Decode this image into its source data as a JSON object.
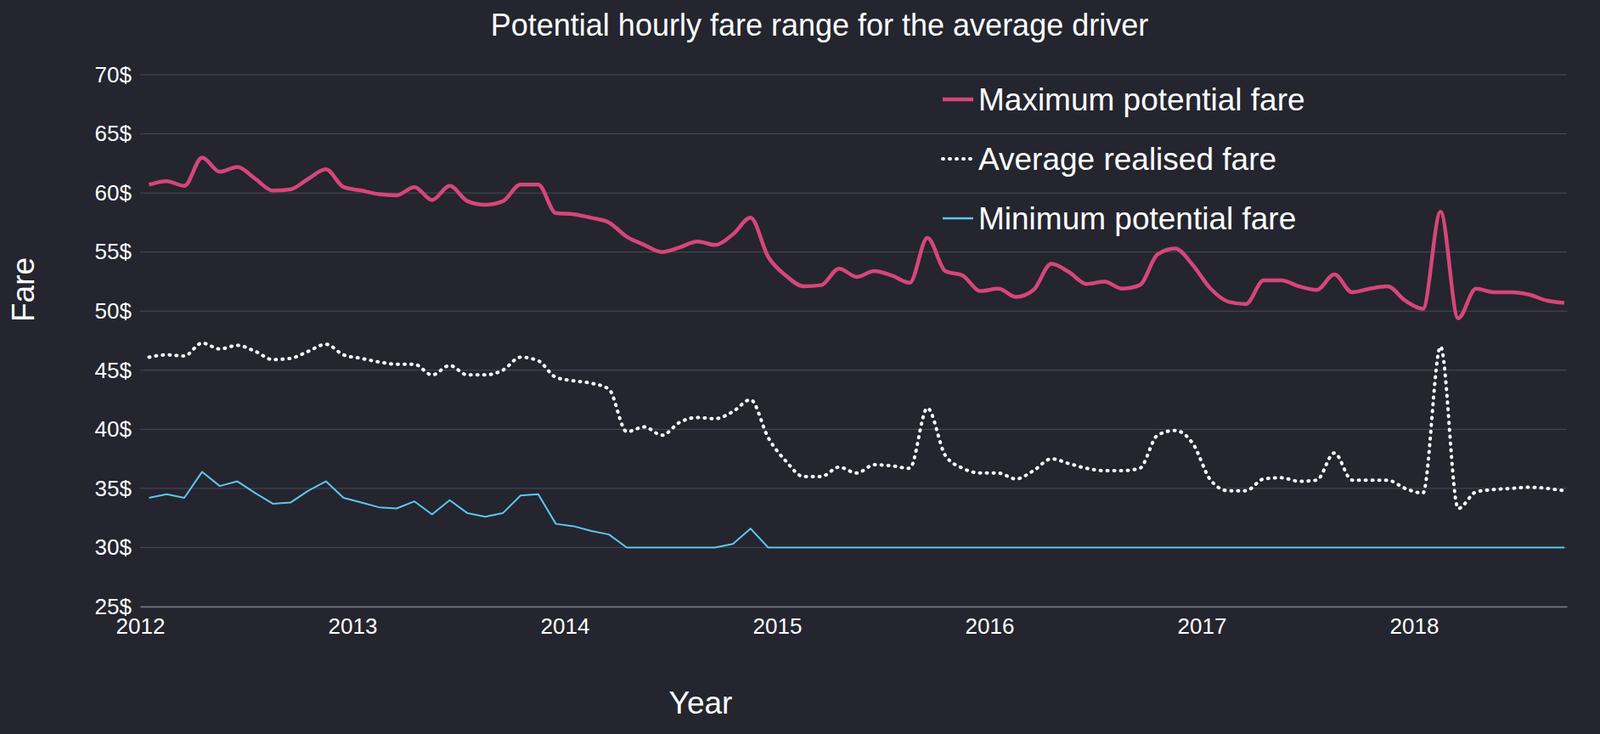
{
  "chart_data": {
    "type": "line",
    "title": "Potential hourly fare range for the average driver",
    "x_label": "Year",
    "y_label": "Fare",
    "x": [
      2012.042,
      2012.125,
      2012.208,
      2012.292,
      2012.375,
      2012.458,
      2012.542,
      2012.625,
      2012.708,
      2012.792,
      2012.875,
      2012.958,
      2013.042,
      2013.125,
      2013.208,
      2013.292,
      2013.375,
      2013.458,
      2013.542,
      2013.625,
      2013.708,
      2013.792,
      2013.875,
      2013.958,
      2014.042,
      2014.125,
      2014.208,
      2014.292,
      2014.375,
      2014.458,
      2014.542,
      2014.625,
      2014.708,
      2014.792,
      2014.875,
      2014.958,
      2015.042,
      2015.125,
      2015.208,
      2015.292,
      2015.375,
      2015.458,
      2015.542,
      2015.625,
      2015.708,
      2015.792,
      2015.875,
      2015.958,
      2016.042,
      2016.125,
      2016.208,
      2016.292,
      2016.375,
      2016.458,
      2016.542,
      2016.625,
      2016.708,
      2016.792,
      2016.875,
      2016.958,
      2017.042,
      2017.125,
      2017.208,
      2017.292,
      2017.375,
      2017.458,
      2017.542,
      2017.625,
      2017.708,
      2017.792,
      2017.875,
      2017.958,
      2018.042,
      2018.125,
      2018.208,
      2018.292,
      2018.375,
      2018.458,
      2018.542,
      2018.625,
      2018.708
    ],
    "series": [
      {
        "name": "Maximum potential fare",
        "color": "#d6467a",
        "line_style": "solid",
        "values": [
          60.7,
          61.0,
          60.6,
          63.0,
          61.8,
          62.2,
          61.2,
          60.2,
          60.3,
          61.2,
          62.0,
          60.5,
          60.2,
          59.9,
          59.8,
          60.5,
          59.4,
          60.6,
          59.3,
          59.0,
          59.3,
          60.7,
          60.7,
          58.3,
          58.2,
          57.9,
          57.5,
          56.3,
          55.6,
          55.0,
          55.4,
          55.9,
          55.6,
          56.5,
          57.9,
          54.6,
          53.0,
          52.1,
          52.2,
          53.6,
          52.9,
          53.4,
          53.0,
          52.4,
          56.2,
          53.4,
          53.0,
          51.7,
          51.9,
          51.2,
          51.8,
          54.0,
          53.3,
          52.3,
          52.5,
          51.9,
          52.2,
          54.8,
          55.3,
          53.9,
          51.9,
          50.8,
          50.6,
          52.6,
          52.6,
          52.1,
          51.8,
          53.1,
          51.6,
          51.9,
          52.1,
          50.9,
          50.2,
          58.4,
          49.4,
          51.9,
          51.6,
          51.6,
          51.4,
          50.9,
          50.7
        ]
      },
      {
        "name": "Average realised fare",
        "color": "#ffffff",
        "line_style": "dotted",
        "values": [
          46.1,
          46.3,
          46.2,
          47.3,
          46.8,
          47.1,
          46.6,
          45.9,
          46.0,
          46.6,
          47.2,
          46.3,
          46.0,
          45.7,
          45.5,
          45.5,
          44.6,
          45.4,
          44.6,
          44.6,
          45.0,
          46.1,
          45.8,
          44.4,
          44.1,
          43.9,
          43.4,
          39.8,
          40.2,
          39.5,
          40.6,
          41.0,
          40.9,
          41.5,
          42.5,
          39.3,
          37.3,
          36.0,
          36.0,
          36.8,
          36.3,
          37.0,
          36.9,
          36.7,
          41.8,
          37.8,
          36.7,
          36.3,
          36.3,
          35.8,
          36.5,
          37.5,
          37.1,
          36.7,
          36.5,
          36.5,
          36.7,
          39.5,
          39.9,
          38.8,
          35.7,
          34.8,
          34.8,
          35.8,
          35.9,
          35.6,
          35.7,
          38.0,
          35.7,
          35.7,
          35.7,
          35.0,
          34.6,
          47.0,
          33.3,
          34.7,
          34.9,
          35.0,
          35.1,
          35.0,
          34.8
        ]
      },
      {
        "name": "Minimum potential fare",
        "color": "#5ec8ec",
        "line_style": "solid",
        "values": [
          34.2,
          34.5,
          34.2,
          36.4,
          35.2,
          35.6,
          34.6,
          33.7,
          33.8,
          34.8,
          35.6,
          34.2,
          33.8,
          33.4,
          33.3,
          33.9,
          32.8,
          34.0,
          32.9,
          32.6,
          32.9,
          34.4,
          34.5,
          32.0,
          31.8,
          31.4,
          31.1,
          30.0,
          30.0,
          30.0,
          30.0,
          30.0,
          30.0,
          30.3,
          31.6,
          30.0,
          30.0,
          30.0,
          30.0,
          30.0,
          30.0,
          30.0,
          30.0,
          30.0,
          30.0,
          30.0,
          30.0,
          30.0,
          30.0,
          30.0,
          30.0,
          30.0,
          30.0,
          30.0,
          30.0,
          30.0,
          30.0,
          30.0,
          30.0,
          30.0,
          30.0,
          30.0,
          30.0,
          30.0,
          30.0,
          30.0,
          30.0,
          30.0,
          30.0,
          30.0,
          30.0,
          30.0,
          30.0,
          30.0,
          30.0,
          30.0,
          30.0,
          30.0,
          30.0,
          30.0,
          30.0
        ]
      }
    ],
    "xlim": [
      2012,
      2018.72
    ],
    "xticks": [
      2012,
      2013,
      2014,
      2015,
      2016,
      2017,
      2018
    ],
    "ylim": [
      25,
      70
    ],
    "yticks": [
      {
        "value": 25,
        "label": "25$"
      },
      {
        "value": 30,
        "label": "30$"
      },
      {
        "value": 35,
        "label": "35$"
      },
      {
        "value": 40,
        "label": "40$"
      },
      {
        "value": 45,
        "label": "45$"
      },
      {
        "value": 50,
        "label": "50$"
      },
      {
        "value": 55,
        "label": "55$"
      },
      {
        "value": 60,
        "label": "60$"
      },
      {
        "value": 65,
        "label": "65$"
      },
      {
        "value": 70,
        "label": "70$"
      }
    ],
    "grid": true,
    "legend": "top-right"
  }
}
